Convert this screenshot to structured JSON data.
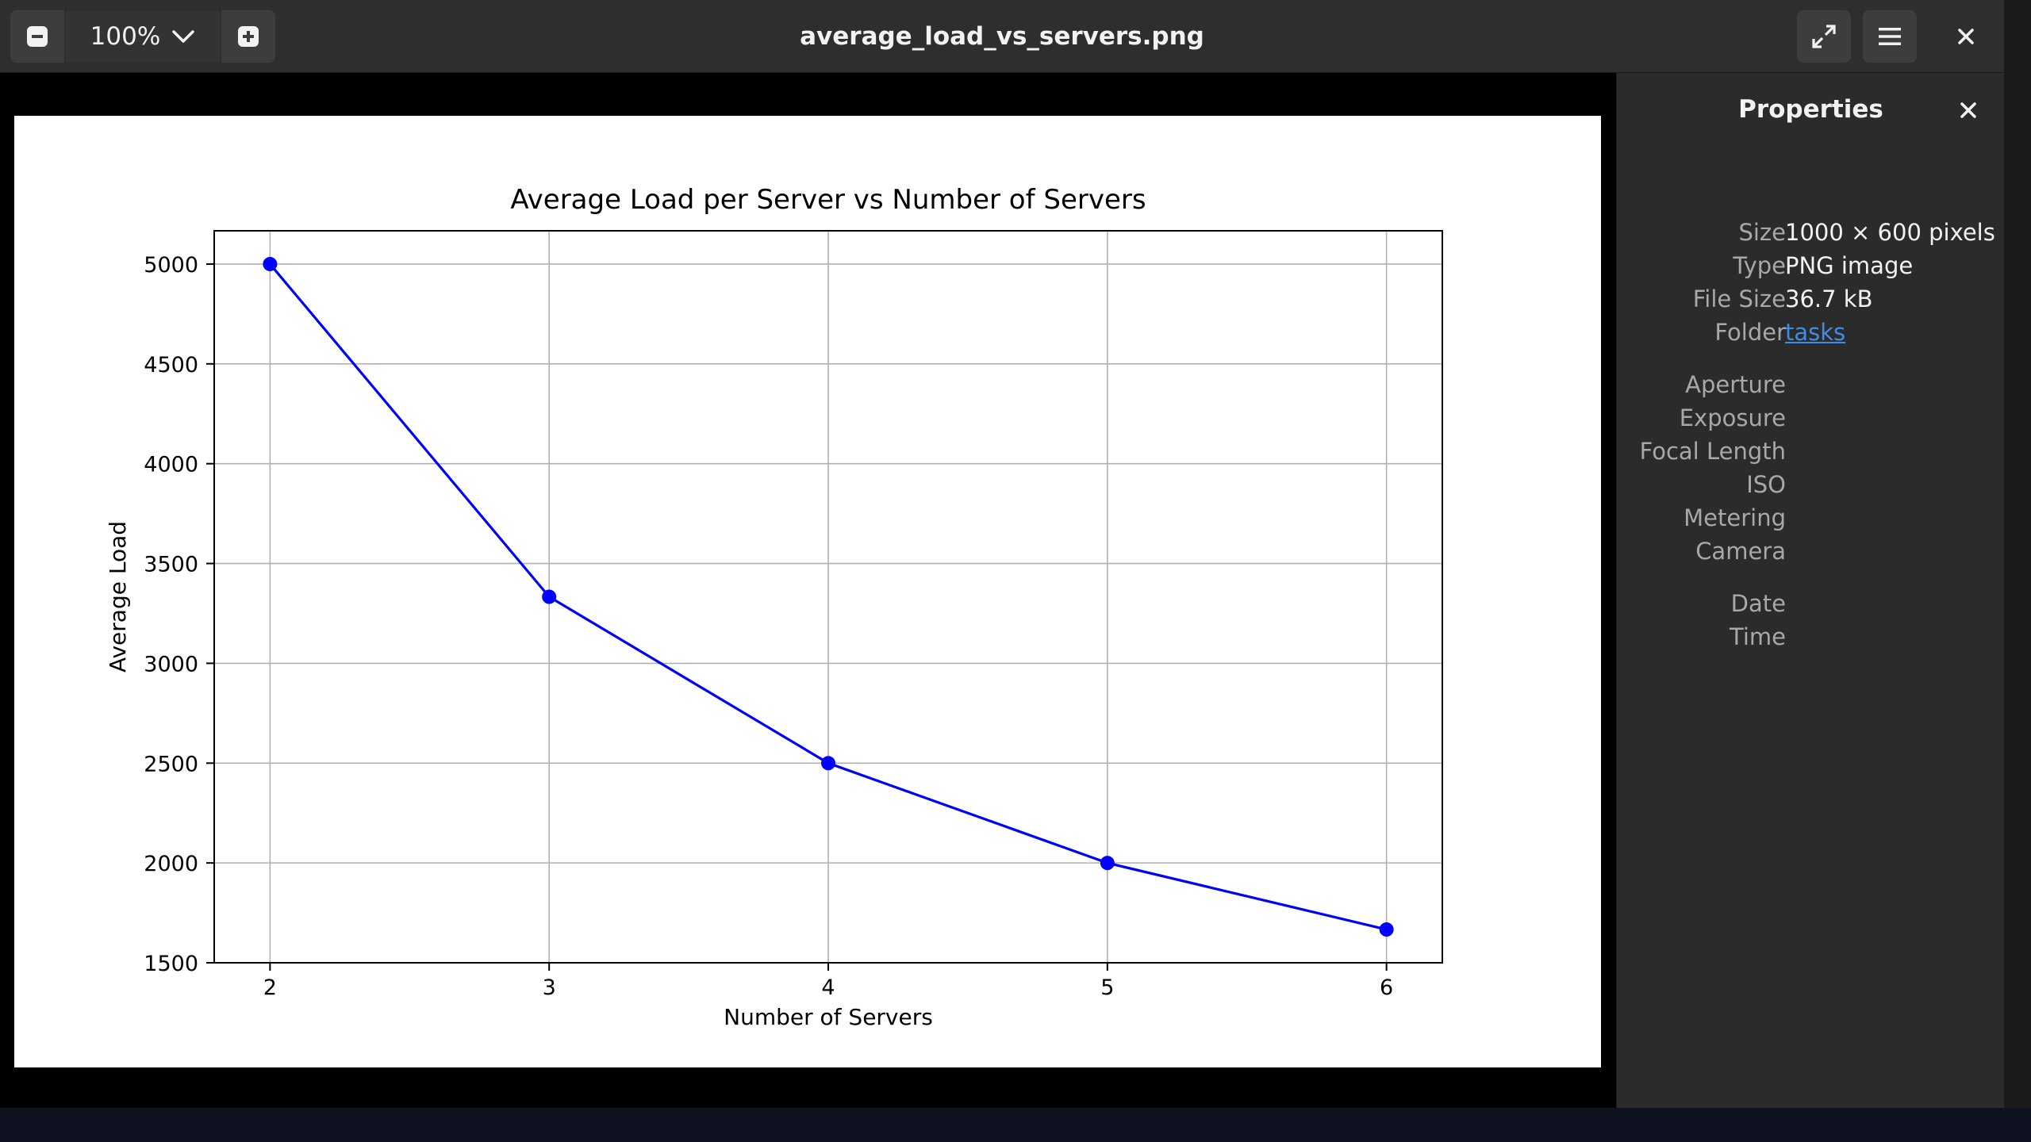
{
  "toolbar": {
    "zoom_level": "100%",
    "title": "average_load_vs_servers.png"
  },
  "icons": {
    "zoom_out": "minus-square-icon",
    "zoom_in": "plus-square-icon",
    "dropdown": "chevron-down-icon",
    "fullscreen": "fullscreen-icon",
    "menu": "hamburger-menu-icon",
    "close": "close-icon"
  },
  "sidebar": {
    "title": "Properties",
    "rows": [
      {
        "label": "Size",
        "value": "1000 × 600 pixels"
      },
      {
        "label": "Type",
        "value": "PNG image"
      },
      {
        "label": "File Size",
        "value": "36.7 kB"
      },
      {
        "label": "Folder",
        "value": "tasks",
        "link": true
      },
      {
        "label": "Aperture",
        "value": ""
      },
      {
        "label": "Exposure",
        "value": ""
      },
      {
        "label": "Focal Length",
        "value": ""
      },
      {
        "label": "ISO",
        "value": ""
      },
      {
        "label": "Metering",
        "value": ""
      },
      {
        "label": "Camera",
        "value": ""
      },
      {
        "label": "Date",
        "value": ""
      },
      {
        "label": "Time",
        "value": ""
      }
    ]
  },
  "chart_data": {
    "type": "line",
    "title": "Average Load per Server vs Number of Servers",
    "xlabel": "Number of Servers",
    "ylabel": "Average Load",
    "x": [
      2,
      3,
      4,
      5,
      6
    ],
    "series": [
      {
        "values": [
          5000,
          3333.33,
          2500,
          2000,
          1666.67
        ]
      }
    ],
    "xticks": [
      "2",
      "3",
      "4",
      "5",
      "6"
    ],
    "yticks": [
      "1500",
      "2000",
      "2500",
      "3000",
      "3500",
      "4000",
      "4500",
      "5000"
    ],
    "xlim": [
      1.8,
      6.2
    ],
    "ylim": [
      1500,
      5166.67
    ],
    "grid": true,
    "line_color": "#0000ff",
    "marker": "circle"
  }
}
